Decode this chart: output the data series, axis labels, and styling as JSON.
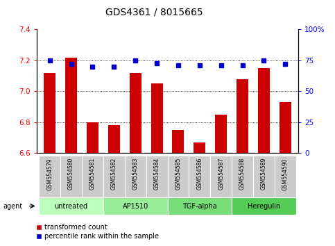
{
  "title": "GDS4361 / 8015665",
  "samples": [
    "GSM554579",
    "GSM554580",
    "GSM554581",
    "GSM554582",
    "GSM554583",
    "GSM554584",
    "GSM554585",
    "GSM554586",
    "GSM554587",
    "GSM554588",
    "GSM554589",
    "GSM554590"
  ],
  "red_values": [
    7.12,
    7.22,
    6.8,
    6.78,
    7.12,
    7.05,
    6.75,
    6.67,
    6.85,
    7.08,
    7.15,
    6.93
  ],
  "blue_values": [
    75,
    72,
    70,
    70,
    75,
    73,
    71,
    71,
    71,
    71,
    75,
    72
  ],
  "ylim_left": [
    6.6,
    7.4
  ],
  "ylim_right": [
    0,
    100
  ],
  "yticks_left": [
    6.6,
    6.8,
    7.0,
    7.2,
    7.4
  ],
  "yticks_right": [
    0,
    25,
    50,
    75,
    100
  ],
  "ytick_labels_right": [
    "0",
    "25",
    "50",
    "75",
    "100%"
  ],
  "groups": [
    {
      "label": "untreated",
      "indices": [
        0,
        1,
        2
      ],
      "color": "#bbffbb"
    },
    {
      "label": "AP1510",
      "indices": [
        3,
        4,
        5
      ],
      "color": "#99ee99"
    },
    {
      "label": "TGF-alpha",
      "indices": [
        6,
        7,
        8
      ],
      "color": "#77dd77"
    },
    {
      "label": "Heregulin",
      "indices": [
        9,
        10,
        11
      ],
      "color": "#55cc55"
    }
  ],
  "bar_color": "#cc0000",
  "dot_color": "#0000cc",
  "bar_width": 0.55,
  "tick_area_color": "#cccccc",
  "agent_label": "agent",
  "legend_red": "transformed count",
  "legend_blue": "percentile rank within the sample",
  "title_fontsize": 10,
  "tick_fontsize": 7.5,
  "sample_fontsize": 5.5,
  "group_fontsize": 7,
  "legend_fontsize": 7
}
